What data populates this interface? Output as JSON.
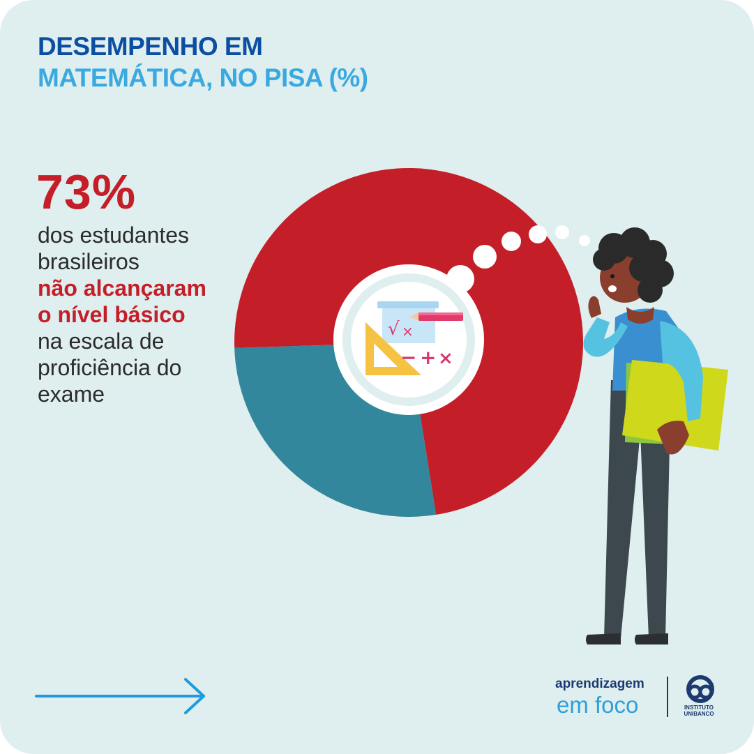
{
  "header": {
    "title_line1": "DESEMPENHO EM",
    "title_line2": "MATEMÁTICA, NO PISA (%)"
  },
  "highlight": {
    "value": "73%",
    "lines": [
      "dos estudantes",
      "brasileiros",
      "não alcançaram",
      "o nível básico",
      "na escala de",
      "proficiência do",
      "exame"
    ]
  },
  "chart_data": {
    "type": "pie",
    "title": "DESEMPENHO EM MATEMÁTICA, NO PISA (%)",
    "slices": [
      {
        "value": 73,
        "color": "#c41e28"
      },
      {
        "value": 27,
        "color": "#33879c"
      }
    ]
  },
  "colors": {
    "background": "#dfeeee",
    "accent_red": "#c41e28",
    "slice_teal": "#33879c",
    "title_dark_blue": "#0b4ea2",
    "title_light_blue": "#3aa9e0",
    "arrow_blue": "#1e9be0"
  },
  "icons": {
    "center": "math-symbols-icon",
    "arrow": "arrow-right-icon",
    "logo": "instituto-unibanco-logo"
  },
  "brand": {
    "line1": "aprendizagem",
    "line2": "em foco",
    "logo_text": "INSTITUTO UNIBANCO"
  }
}
